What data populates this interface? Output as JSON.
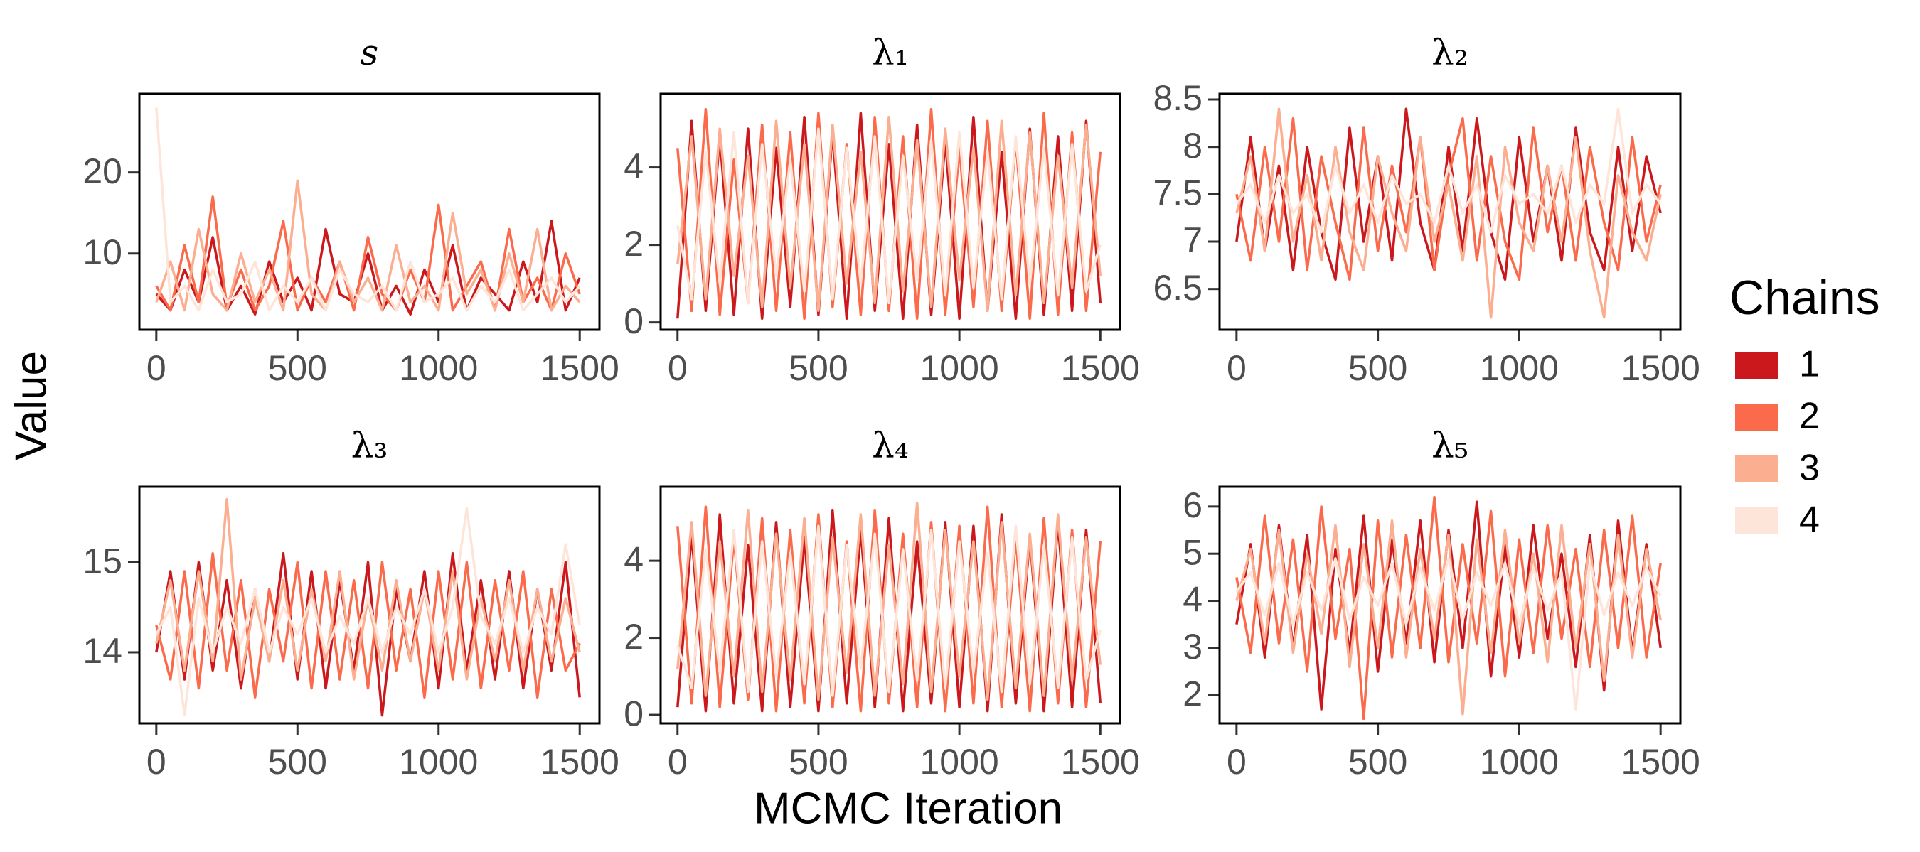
{
  "ylabel": "Value",
  "xlabel": "MCMC Iteration",
  "legend_title": "Chains",
  "chart_data": [
    {
      "type": "line",
      "title": "s",
      "x": [
        0,
        50,
        100,
        150,
        200,
        250,
        300,
        350,
        400,
        450,
        500,
        550,
        600,
        650,
        700,
        750,
        800,
        850,
        900,
        950,
        1000,
        1050,
        1100,
        1150,
        1200,
        1250,
        1300,
        1350,
        1400,
        1450,
        1500
      ],
      "xlim": [
        -60,
        1570
      ],
      "xticks": [
        0,
        500,
        1000,
        1500
      ],
      "ylim": [
        0.6,
        29.7
      ],
      "yticks": [
        10,
        20
      ],
      "series": [
        {
          "name": "1",
          "color": "#cb181d",
          "values": [
            5,
            3,
            8,
            4,
            12,
            3,
            6,
            2.5,
            9,
            4,
            7,
            3,
            13,
            5,
            4,
            10,
            3,
            6,
            2.5,
            8,
            4,
            11,
            3,
            7,
            5,
            3,
            9,
            4,
            14,
            3,
            7
          ]
        },
        {
          "name": "2",
          "color": "#fb6a4a",
          "values": [
            6,
            3,
            11,
            4,
            17,
            3.5,
            8,
            3,
            6,
            14,
            3,
            7,
            4,
            9,
            3,
            12,
            5,
            3,
            8,
            4,
            16,
            3,
            6,
            9,
            3,
            13,
            4,
            7,
            3,
            10,
            5
          ]
        },
        {
          "name": "3",
          "color": "#fcae91",
          "values": [
            4,
            9,
            3,
            13,
            5,
            3,
            10,
            4,
            8,
            3,
            19,
            5,
            3,
            9,
            4,
            7,
            3,
            11,
            4,
            6,
            3,
            15,
            5,
            8,
            3,
            10,
            4,
            13,
            3,
            6,
            4
          ]
        },
        {
          "name": "4",
          "color": "#fee5d9",
          "values": [
            28,
            4,
            6,
            3,
            8,
            4,
            5,
            9,
            3,
            6,
            4,
            7,
            3,
            8,
            5,
            4,
            6,
            3,
            9,
            4,
            5,
            7,
            3,
            6,
            4,
            8,
            3,
            5,
            7,
            4,
            6
          ]
        }
      ]
    },
    {
      "type": "line",
      "title": "λ₁",
      "x": [
        0,
        50,
        100,
        150,
        200,
        250,
        300,
        350,
        400,
        450,
        500,
        550,
        600,
        650,
        700,
        750,
        800,
        850,
        900,
        950,
        1000,
        1050,
        1100,
        1150,
        1200,
        1250,
        1300,
        1350,
        1400,
        1450,
        1500
      ],
      "xlim": [
        -60,
        1570
      ],
      "xticks": [
        0,
        500,
        1000,
        1500
      ],
      "ylim": [
        -0.19,
        5.9
      ],
      "yticks": [
        0,
        2,
        4
      ],
      "series": [
        {
          "name": "1",
          "color": "#cb181d",
          "values": [
            0.1,
            5.2,
            0.3,
            4.8,
            0.2,
            5.0,
            0.1,
            4.5,
            0.4,
            5.3,
            0.2,
            4.9,
            0.1,
            5.4,
            0.3,
            4.6,
            0.1,
            5.1,
            0.2,
            4.7,
            0.1,
            5.3,
            0.3,
            4.4,
            0.1,
            5.0,
            0.2,
            4.8,
            0.3,
            5.2,
            0.5
          ]
        },
        {
          "name": "2",
          "color": "#fb6a4a",
          "values": [
            4.5,
            0.3,
            5.5,
            0.2,
            4.2,
            0.5,
            5.1,
            0.3,
            4.9,
            0.1,
            5.4,
            0.4,
            4.6,
            0.2,
            5.3,
            0.3,
            4.8,
            0.1,
            5.5,
            0.2,
            4.5,
            0.4,
            5.2,
            0.3,
            4.7,
            0.1,
            5.4,
            0.2,
            4.9,
            0.3,
            4.4
          ]
        },
        {
          "name": "3",
          "color": "#fcae91",
          "values": [
            1.5,
            4.8,
            0.6,
            5.0,
            1.2,
            4.3,
            0.4,
            5.2,
            0.9,
            4.6,
            0.3,
            5.1,
            1.0,
            4.4,
            0.5,
            5.3,
            0.8,
            4.7,
            0.4,
            5.0,
            1.1,
            4.5,
            0.3,
            5.2,
            0.7,
            4.9,
            0.5,
            4.3,
            0.9,
            5.1,
            1.2
          ]
        },
        {
          "name": "4",
          "color": "#fee5d9",
          "values": [
            2.5,
            0.6,
            4.4,
            1.0,
            4.9,
            0.5,
            4.6,
            1.2,
            4.2,
            0.8,
            5.0,
            0.6,
            4.5,
            1.0,
            4.8,
            0.5,
            4.3,
            1.1,
            4.7,
            0.7,
            4.9,
            0.9,
            4.4,
            0.6,
            4.8,
            1.0,
            4.5,
            0.7,
            4.6,
            0.8,
            2.0
          ]
        }
      ]
    },
    {
      "type": "line",
      "title": "λ₂",
      "x": [
        0,
        50,
        100,
        150,
        200,
        250,
        300,
        350,
        400,
        450,
        500,
        550,
        600,
        650,
        700,
        750,
        800,
        850,
        900,
        950,
        1000,
        1050,
        1100,
        1150,
        1200,
        1250,
        1300,
        1350,
        1400,
        1450,
        1500
      ],
      "xlim": [
        -60,
        1570
      ],
      "xticks": [
        0,
        500,
        1000,
        1500
      ],
      "ylim": [
        6.07,
        8.56
      ],
      "yticks": [
        6.5,
        7.0,
        7.5,
        8.0,
        8.5
      ],
      "series": [
        {
          "name": "1",
          "color": "#cb181d",
          "values": [
            7.0,
            8.1,
            6.9,
            7.8,
            6.7,
            8.0,
            7.1,
            6.6,
            8.2,
            7.0,
            7.9,
            6.8,
            8.4,
            7.2,
            6.7,
            8.0,
            6.9,
            8.3,
            7.1,
            6.6,
            8.1,
            7.0,
            7.8,
            6.8,
            8.2,
            7.1,
            6.7,
            8.0,
            6.9,
            7.9,
            7.3
          ]
        },
        {
          "name": "2",
          "color": "#fb6a4a",
          "values": [
            7.5,
            6.8,
            8.0,
            7.0,
            8.3,
            6.7,
            7.9,
            7.2,
            6.6,
            8.2,
            6.9,
            7.8,
            7.1,
            8.1,
            6.7,
            7.7,
            8.3,
            6.8,
            7.9,
            7.0,
            6.6,
            8.2,
            7.1,
            7.8,
            6.8,
            8.0,
            7.2,
            6.7,
            8.1,
            7.0,
            7.6
          ]
        },
        {
          "name": "3",
          "color": "#fcae91",
          "values": [
            7.3,
            7.9,
            6.9,
            8.4,
            7.0,
            7.7,
            6.8,
            8.0,
            7.1,
            6.7,
            7.9,
            7.3,
            6.9,
            8.1,
            7.0,
            7.6,
            6.8,
            7.9,
            6.2,
            8.0,
            7.2,
            6.9,
            7.8,
            7.0,
            8.1,
            6.9,
            6.2,
            7.7,
            7.1,
            6.8,
            7.5
          ]
        },
        {
          "name": "4",
          "color": "#fee5d9",
          "values": [
            7.4,
            7.6,
            7.2,
            7.7,
            7.3,
            7.5,
            7.1,
            7.8,
            7.3,
            7.6,
            7.2,
            7.7,
            7.4,
            7.5,
            7.2,
            7.8,
            7.3,
            7.6,
            7.1,
            7.7,
            7.4,
            7.5,
            7.3,
            7.8,
            7.2,
            7.6,
            7.4,
            8.4,
            7.3,
            7.6,
            7.4
          ]
        }
      ]
    },
    {
      "type": "line",
      "title": "λ₃",
      "x": [
        0,
        50,
        100,
        150,
        200,
        250,
        300,
        350,
        400,
        450,
        500,
        550,
        600,
        650,
        700,
        750,
        800,
        850,
        900,
        950,
        1000,
        1050,
        1100,
        1150,
        1200,
        1250,
        1300,
        1350,
        1400,
        1450,
        1500
      ],
      "xlim": [
        -60,
        1570
      ],
      "xticks": [
        0,
        500,
        1000,
        1500
      ],
      "ylim": [
        13.21,
        15.84
      ],
      "yticks": [
        14,
        15
      ],
      "series": [
        {
          "name": "1",
          "color": "#cb181d",
          "values": [
            14.0,
            14.9,
            13.7,
            15.0,
            13.8,
            14.8,
            13.6,
            14.7,
            13.9,
            15.1,
            13.7,
            14.9,
            13.6,
            14.8,
            13.8,
            15.0,
            13.3,
            14.7,
            13.9,
            14.9,
            13.6,
            15.1,
            13.8,
            14.8,
            13.7,
            14.9,
            13.6,
            14.7,
            13.8,
            15.0,
            13.5
          ]
        },
        {
          "name": "2",
          "color": "#fb6a4a",
          "values": [
            14.3,
            13.7,
            14.9,
            13.6,
            15.1,
            13.8,
            14.8,
            13.5,
            14.7,
            13.9,
            15.0,
            13.6,
            14.9,
            13.7,
            14.8,
            13.6,
            15.0,
            13.8,
            14.7,
            13.5,
            14.9,
            13.7,
            15.0,
            13.6,
            14.8,
            13.8,
            14.9,
            13.5,
            14.7,
            13.8,
            14.1
          ]
        },
        {
          "name": "3",
          "color": "#fcae91",
          "values": [
            14.1,
            14.8,
            13.8,
            14.9,
            13.9,
            15.7,
            13.7,
            14.6,
            13.9,
            14.8,
            13.8,
            14.7,
            13.9,
            14.9,
            13.7,
            14.6,
            13.8,
            14.8,
            13.9,
            14.7,
            13.8,
            14.9,
            13.7,
            14.6,
            13.9,
            14.8,
            13.8,
            14.7,
            13.9,
            14.6,
            14.0
          ]
        },
        {
          "name": "4",
          "color": "#fee5d9",
          "values": [
            14.2,
            14.5,
            13.3,
            14.6,
            14.0,
            14.5,
            14.1,
            14.7,
            14.0,
            14.5,
            14.2,
            14.6,
            14.0,
            14.4,
            14.1,
            14.6,
            14.0,
            14.5,
            14.2,
            14.7,
            14.0,
            14.5,
            15.6,
            14.4,
            14.1,
            14.6,
            14.0,
            14.5,
            14.2,
            15.2,
            14.3
          ]
        }
      ]
    },
    {
      "type": "line",
      "title": "λ₄",
      "x": [
        0,
        50,
        100,
        150,
        200,
        250,
        300,
        350,
        400,
        450,
        500,
        550,
        600,
        650,
        700,
        750,
        800,
        850,
        900,
        950,
        1000,
        1050,
        1100,
        1150,
        1200,
        1250,
        1300,
        1350,
        1400,
        1450,
        1500
      ],
      "xlim": [
        -60,
        1570
      ],
      "xticks": [
        0,
        500,
        1000,
        1500
      ],
      "ylim": [
        -0.22,
        5.92
      ],
      "yticks": [
        0,
        2,
        4
      ],
      "series": [
        {
          "name": "1",
          "color": "#cb181d",
          "values": [
            0.2,
            4.7,
            0.1,
            5.2,
            0.3,
            4.4,
            0.1,
            5.0,
            0.2,
            4.6,
            0.1,
            5.3,
            0.3,
            4.8,
            0.2,
            5.1,
            0.1,
            4.5,
            0.3,
            5.0,
            0.2,
            4.9,
            0.1,
            5.2,
            0.3,
            4.6,
            0.1,
            5.0,
            0.2,
            4.8,
            0.3
          ]
        },
        {
          "name": "2",
          "color": "#fb6a4a",
          "values": [
            4.9,
            0.3,
            5.4,
            0.2,
            4.6,
            0.4,
            5.1,
            0.1,
            4.8,
            0.3,
            5.2,
            0.2,
            4.5,
            0.1,
            5.3,
            0.3,
            4.7,
            0.2,
            5.0,
            0.1,
            4.9,
            0.3,
            5.4,
            0.2,
            4.6,
            0.1,
            5.1,
            0.3,
            4.8,
            0.2,
            4.5
          ]
        },
        {
          "name": "3",
          "color": "#fcae91",
          "values": [
            1.2,
            5.0,
            0.5,
            4.5,
            1.0,
            5.3,
            0.6,
            4.7,
            0.9,
            5.1,
            0.4,
            4.6,
            1.1,
            5.2,
            0.5,
            4.4,
            0.8,
            5.5,
            0.6,
            4.8,
            1.0,
            4.5,
            0.4,
            5.0,
            0.7,
            4.7,
            0.5,
            5.2,
            0.9,
            4.6,
            1.3
          ]
        },
        {
          "name": "4",
          "color": "#fee5d9",
          "values": [
            1.8,
            0.7,
            4.3,
            1.1,
            4.8,
            0.6,
            4.5,
            1.0,
            4.2,
            0.8,
            4.9,
            0.5,
            4.4,
            1.2,
            4.7,
            0.6,
            4.3,
            0.9,
            4.8,
            0.7,
            4.5,
            1.1,
            4.2,
            0.6,
            4.9,
            0.8,
            4.4,
            0.7,
            4.6,
            0.9,
            2.2
          ]
        }
      ]
    },
    {
      "type": "line",
      "title": "λ₅",
      "x": [
        0,
        50,
        100,
        150,
        200,
        250,
        300,
        350,
        400,
        450,
        500,
        550,
        600,
        650,
        700,
        750,
        800,
        850,
        900,
        950,
        1000,
        1050,
        1100,
        1150,
        1200,
        1250,
        1300,
        1350,
        1400,
        1450,
        1500
      ],
      "xlim": [
        -60,
        1570
      ],
      "xticks": [
        0,
        500,
        1000,
        1500
      ],
      "ylim": [
        1.4,
        6.42
      ],
      "yticks": [
        2,
        3,
        4,
        5,
        6
      ],
      "series": [
        {
          "name": "1",
          "color": "#cb181d",
          "values": [
            3.5,
            5.2,
            2.8,
            5.6,
            3.0,
            5.4,
            1.7,
            5.1,
            2.9,
            5.8,
            2.5,
            5.3,
            3.1,
            5.7,
            2.7,
            5.5,
            3.0,
            6.1,
            2.4,
            5.2,
            2.8,
            5.6,
            3.2,
            5.0,
            2.6,
            5.4,
            2.1,
            5.7,
            2.9,
            5.2,
            3.0
          ]
        },
        {
          "name": "2",
          "color": "#fb6a4a",
          "values": [
            4.5,
            2.9,
            5.8,
            3.1,
            5.3,
            2.5,
            6.0,
            3.2,
            5.1,
            1.5,
            5.7,
            2.8,
            5.4,
            3.0,
            6.2,
            2.7,
            5.2,
            3.1,
            5.9,
            2.4,
            5.3,
            2.9,
            5.6,
            3.2,
            5.1,
            2.6,
            5.5,
            3.0,
            5.8,
            2.8,
            4.8
          ]
        },
        {
          "name": "3",
          "color": "#fcae91",
          "values": [
            4.0,
            5.1,
            3.1,
            5.5,
            2.9,
            5.0,
            3.3,
            5.6,
            2.6,
            5.2,
            3.0,
            5.7,
            2.8,
            5.1,
            3.2,
            5.4,
            1.6,
            5.3,
            2.9,
            5.5,
            3.1,
            5.0,
            2.7,
            5.6,
            3.0,
            5.2,
            2.3,
            5.4,
            2.8,
            5.1,
            3.6
          ]
        },
        {
          "name": "4",
          "color": "#fee5d9",
          "values": [
            4.2,
            4.6,
            3.7,
            4.8,
            3.5,
            4.6,
            3.8,
            4.9,
            3.6,
            4.5,
            3.9,
            4.8,
            3.5,
            4.7,
            3.8,
            4.9,
            3.6,
            4.6,
            3.9,
            4.8,
            3.5,
            4.7,
            3.8,
            4.6,
            1.7,
            4.8,
            3.7,
            4.6,
            3.9,
            4.7,
            4.1
          ]
        }
      ]
    }
  ]
}
